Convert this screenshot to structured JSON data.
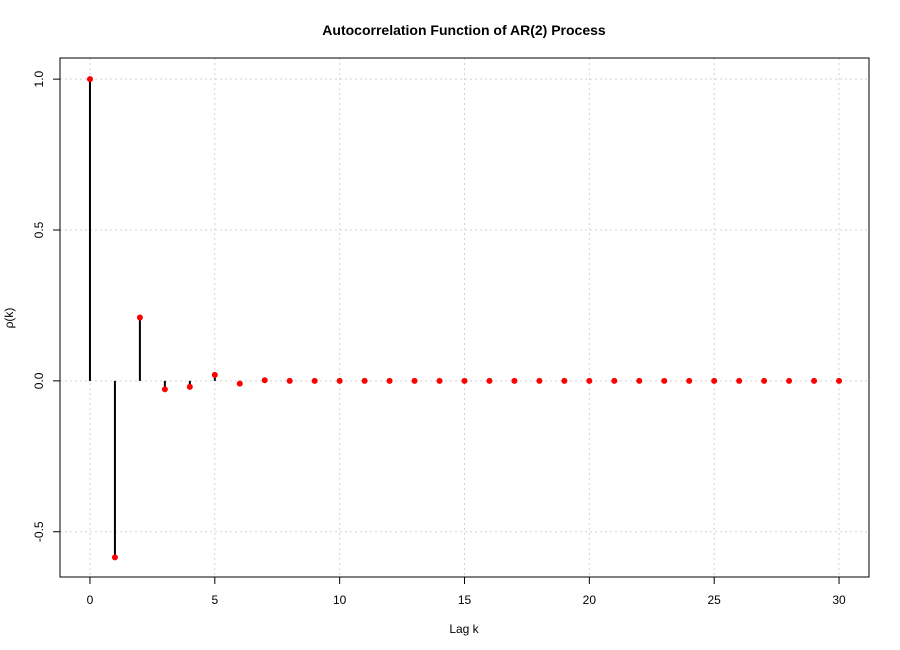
{
  "chart_data": {
    "type": "scatter",
    "subtype": "stem",
    "title": "Autocorrelation Function of AR(2) Process",
    "xlabel": "Lag k",
    "ylabel": "ρ(k)",
    "xlim": [
      -1.2,
      31.2
    ],
    "ylim": [
      -0.65,
      1.07
    ],
    "grid": true,
    "x_ticks": [
      0,
      5,
      10,
      15,
      20,
      25,
      30
    ],
    "y_ticks": [
      -0.5,
      0.0,
      0.5,
      1.0
    ],
    "y_tick_labels": [
      "-0.5",
      "0.0",
      "0.5",
      "1.0"
    ],
    "colors": {
      "points": "#ff0000",
      "stems": "#000000",
      "grid": "#d3d3d3"
    },
    "x": [
      0,
      1,
      2,
      3,
      4,
      5,
      6,
      7,
      8,
      9,
      10,
      11,
      12,
      13,
      14,
      15,
      16,
      17,
      18,
      19,
      20,
      21,
      22,
      23,
      24,
      25,
      26,
      27,
      28,
      29,
      30
    ],
    "y": [
      1.0,
      -0.585,
      0.21,
      -0.028,
      -0.02,
      0.02,
      -0.009,
      0.002,
      0.0,
      0.0,
      0.0,
      0.0,
      0.0,
      0.0,
      0.0,
      0.0,
      0.0,
      0.0,
      0.0,
      0.0,
      0.0,
      0.0,
      0.0,
      0.0,
      0.0,
      0.0,
      0.0,
      0.0,
      0.0,
      0.0,
      0.0
    ]
  }
}
